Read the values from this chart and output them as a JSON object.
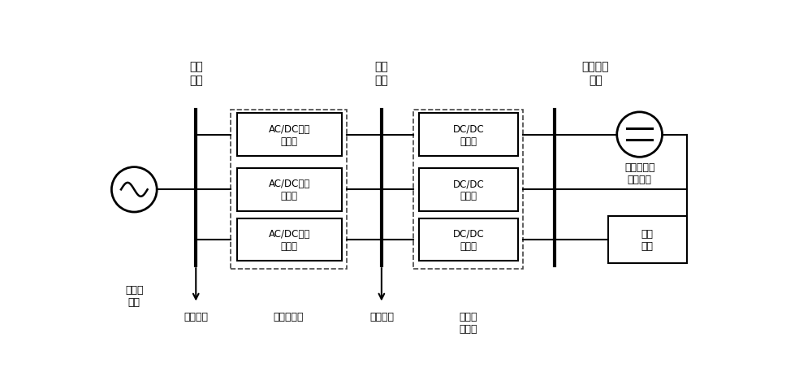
{
  "bg_color": "#ffffff",
  "line_color": "#000000",
  "fig_width": 10.0,
  "fig_height": 4.64,
  "labels": {
    "ac_bus": "交流\n母线",
    "dc_bus": "直流\n母线",
    "dc_power_bus": "直流电源\n母线",
    "traditional_grid": "传统配\n电网",
    "ac_dc_converter1": "AC/DC双向\n换流器",
    "ac_dc_converter2": "AC/DC双向\n换流器",
    "ac_dc_converter3": "AC/DC双向\n换流器",
    "dc_dc_converter1": "DC/DC\n变流器",
    "dc_dc_converter2": "DC/DC\n变流器",
    "dc_dc_converter3": "DC/DC\n变流器",
    "pv_source": "光伏发电等\n直流电源",
    "storage": "储能\n系统",
    "ac_load": "交流负荷",
    "ac_dc_section": "交直流断面",
    "dc_load": "直流负荷",
    "dc_chopper": "直流斩\n波电路"
  }
}
